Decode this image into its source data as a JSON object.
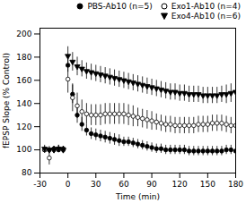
{
  "chart_data": {
    "type": "scatter",
    "xlabel": "Time (min)",
    "ylabel": "fEPSP Slope (% Control)",
    "xlim": [
      -30,
      180
    ],
    "ylim": [
      80,
      205
    ],
    "xticks": [
      -30,
      0,
      30,
      60,
      90,
      120,
      150,
      180
    ],
    "yticks": [
      80,
      100,
      120,
      140,
      160,
      180,
      200
    ],
    "grid": false,
    "legend": "upper right",
    "x": [
      -25,
      -20,
      -15,
      -10,
      -5,
      0,
      5,
      10,
      15,
      20,
      25,
      30,
      35,
      40,
      45,
      50,
      55,
      60,
      65,
      70,
      75,
      80,
      85,
      90,
      95,
      100,
      105,
      110,
      115,
      120,
      125,
      130,
      135,
      140,
      145,
      150,
      155,
      160,
      165,
      170,
      175,
      180
    ],
    "series": [
      {
        "name": "PBS-Ab10 (n=5)",
        "color": "#000000",
        "marker": "circle",
        "values": [
          100,
          100,
          101,
          100,
          101,
          173,
          148,
          130,
          122,
          117,
          114,
          113,
          112,
          111,
          110,
          109,
          108,
          107,
          107,
          106,
          105,
          104,
          103,
          102,
          101,
          101,
          100,
          100,
          100,
          100,
          100,
          99,
          99,
          99,
          99,
          99,
          99,
          99,
          99,
          100,
          100,
          99
        ],
        "error": [
          2,
          2,
          2,
          2,
          2,
          6,
          8,
          7,
          6,
          5,
          5,
          5,
          5,
          5,
          5,
          5,
          5,
          4,
          4,
          4,
          4,
          4,
          4,
          4,
          4,
          4,
          4,
          4,
          4,
          4,
          4,
          4,
          4,
          4,
          4,
          4,
          4,
          4,
          4,
          4,
          4,
          4
        ]
      },
      {
        "name": "Exo1-Ab10 (n=4)",
        "color": "#000000",
        "marker": "open_circle",
        "values": [
          100,
          93,
          100,
          101,
          100,
          161,
          145,
          138,
          133,
          131,
          130,
          130,
          130,
          131,
          131,
          131,
          131,
          131,
          130,
          129,
          128,
          127,
          126,
          125,
          124,
          123,
          122,
          122,
          121,
          121,
          121,
          121,
          121,
          122,
          122,
          122,
          123,
          123,
          123,
          122,
          121,
          121
        ],
        "error": [
          3,
          6,
          3,
          3,
          3,
          12,
          12,
          11,
          10,
          9,
          9,
          9,
          9,
          9,
          9,
          9,
          9,
          9,
          9,
          9,
          8,
          8,
          8,
          8,
          7,
          7,
          7,
          7,
          7,
          7,
          7,
          7,
          7,
          7,
          7,
          7,
          7,
          7,
          7,
          7,
          7,
          7
        ]
      },
      {
        "name": "Exo4-Ab10 (n=6)",
        "color": "#000000",
        "marker": "triangle_down",
        "values": [
          101,
          100,
          100,
          101,
          100,
          181,
          176,
          172,
          170,
          168,
          167,
          166,
          165,
          164,
          163,
          162,
          161,
          160,
          159,
          158,
          157,
          156,
          155,
          154,
          153,
          152,
          151,
          150,
          150,
          149,
          149,
          148,
          148,
          148,
          147,
          147,
          147,
          147,
          148,
          148,
          149,
          150
        ],
        "error": [
          3,
          3,
          3,
          3,
          3,
          8,
          8,
          8,
          7,
          7,
          7,
          7,
          7,
          7,
          7,
          7,
          7,
          7,
          7,
          7,
          7,
          7,
          7,
          7,
          7,
          7,
          7,
          7,
          7,
          7,
          7,
          7,
          7,
          7,
          7,
          7,
          7,
          7,
          7,
          8,
          8,
          9
        ]
      }
    ]
  }
}
